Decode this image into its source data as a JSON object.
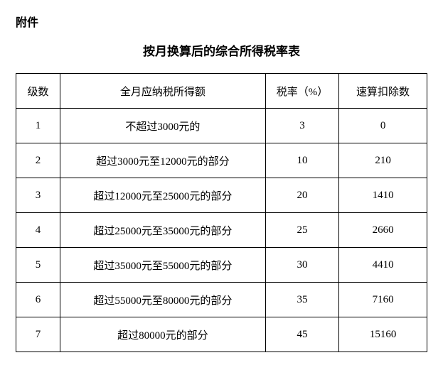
{
  "attachment_label": "附件",
  "title": "按月换算后的综合所得税率表",
  "table": {
    "columns": [
      "级数",
      "全月应纳税所得额",
      "税率（%）",
      "速算扣除数"
    ],
    "rows": [
      [
        "1",
        "不超过3000元的",
        "3",
        "0"
      ],
      [
        "2",
        "超过3000元至12000元的部分",
        "10",
        "210"
      ],
      [
        "3",
        "超过12000元至25000元的部分",
        "20",
        "1410"
      ],
      [
        "4",
        "超过25000元至35000元的部分",
        "25",
        "2660"
      ],
      [
        "5",
        "超过35000元至55000元的部分",
        "30",
        "4410"
      ],
      [
        "6",
        "超过55000元至80000元的部分",
        "35",
        "7160"
      ],
      [
        "7",
        "超过80000元的部分",
        "45",
        "15160"
      ]
    ]
  }
}
